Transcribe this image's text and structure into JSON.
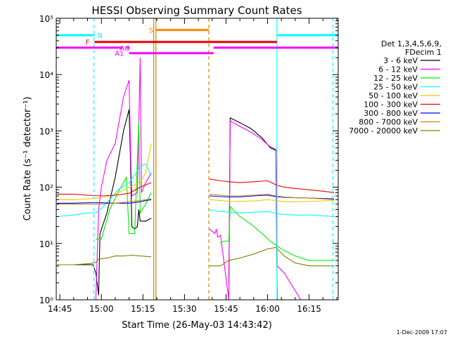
{
  "chart_data": {
    "type": "line",
    "title": "HESSI Observing Summary Count Rates",
    "xlabel": "Start Time (26-May-03 14:43:42)",
    "ylabel": "Count Rate (s⁻¹ detector⁻¹)",
    "footer": "1-Dec-2009 17:07",
    "x_unit": "minutes after 14:00 UT",
    "xlim": [
      43.7,
      145.5
    ],
    "ylim": [
      1,
      100000
    ],
    "yscale": "log",
    "x_ticks": [
      {
        "v": 45,
        "label": "14:45"
      },
      {
        "v": 60,
        "label": "15:00"
      },
      {
        "v": 75,
        "label": "15:15"
      },
      {
        "v": 90,
        "label": "15:30"
      },
      {
        "v": 105,
        "label": "15:45"
      },
      {
        "v": 120,
        "label": "16:00"
      },
      {
        "v": 135,
        "label": "16:15"
      }
    ],
    "y_ticks": [
      {
        "v": 1,
        "label": "10⁰"
      },
      {
        "v": 10,
        "label": "10¹"
      },
      {
        "v": 100,
        "label": "10²"
      },
      {
        "v": 1000,
        "label": "10³"
      },
      {
        "v": 10000,
        "label": "10⁴"
      },
      {
        "v": 100000,
        "label": "10⁵"
      }
    ],
    "legend": {
      "placement": "right",
      "header": [
        "Det 1,3,4,5,6,9,",
        "FDecim 1"
      ]
    },
    "series": [
      {
        "name": "3 - 6 keV",
        "color": "#000000",
        "segments": [
          [
            [
              44,
              4.2
            ],
            [
              57,
              4.2
            ],
            [
              58,
              3
            ],
            [
              59,
              1.2
            ],
            [
              59.5,
              15
            ],
            [
              62,
              35
            ],
            [
              65,
              150
            ],
            [
              68,
              1000
            ],
            [
              70,
              2400
            ],
            [
              70.5,
              300
            ],
            [
              71,
              20
            ],
            [
              72,
              18
            ],
            [
              73,
              20
            ],
            [
              73.5,
              40
            ],
            [
              74,
              25
            ],
            [
              76,
              25
            ],
            [
              78,
              28
            ]
          ],
          [
            [
              103,
              1
            ],
            [
              106,
              1
            ],
            [
              106.5,
              1700
            ],
            [
              110,
              1400
            ],
            [
              114,
              1100
            ],
            [
              118,
              750
            ],
            [
              121,
              500
            ],
            [
              123,
              450
            ],
            [
              123.5,
              1
            ]
          ]
        ]
      },
      {
        "name": "6 - 12 keV",
        "color": "#ff00ff",
        "segments": [
          [
            [
              44,
              1
            ],
            [
              55,
              1
            ],
            [
              55.5,
              1
            ],
            [
              57,
              1
            ],
            [
              58,
              1
            ],
            [
              59,
              40
            ],
            [
              60,
              100
            ],
            [
              62,
              300
            ],
            [
              65,
              600
            ],
            [
              68,
              4000
            ],
            [
              70,
              8000
            ],
            [
              70.5,
              500
            ],
            [
              71,
              70
            ],
            [
              73,
              80
            ],
            [
              74,
              20000
            ],
            [
              74.5,
              80
            ],
            [
              76,
              120
            ],
            [
              78,
              180
            ]
          ],
          [
            [
              99,
              18
            ],
            [
              101,
              15
            ],
            [
              101.5,
              18
            ],
            [
              102,
              13
            ],
            [
              103,
              14
            ],
            [
              106,
              1
            ],
            [
              106.5,
              1500
            ],
            [
              110,
              1200
            ],
            [
              114,
              950
            ],
            [
              118,
              700
            ],
            [
              121,
              520
            ],
            [
              123,
              470
            ],
            [
              123.5,
              4
            ],
            [
              126,
              3
            ],
            [
              132,
              1
            ]
          ]
        ]
      },
      {
        "name": "12 - 25 keV",
        "color": "#00ee00",
        "segments": [
          [
            [
              58,
              12
            ],
            [
              60,
              12
            ],
            [
              63,
              40
            ],
            [
              66,
              80
            ],
            [
              69,
              150
            ],
            [
              70,
              15
            ],
            [
              72,
              15
            ],
            [
              73.5,
              1500
            ],
            [
              74,
              35
            ],
            [
              76,
              50
            ],
            [
              78,
              80
            ]
          ],
          [
            [
              103,
              10
            ],
            [
              104,
              11
            ],
            [
              106,
              11
            ],
            [
              106.5,
              45
            ],
            [
              110,
              30
            ],
            [
              114,
              22
            ],
            [
              118,
              15
            ],
            [
              121,
              11
            ],
            [
              125,
              8
            ],
            [
              130,
              6
            ],
            [
              135,
              5
            ],
            [
              140,
              5
            ],
            [
              144,
              5
            ]
          ]
        ]
      },
      {
        "name": "25 - 50 keV",
        "color": "#00ffff",
        "segments": [
          [
            [
              44,
              30
            ],
            [
              50,
              32
            ],
            [
              55,
              35
            ],
            [
              58,
              35
            ],
            [
              60,
              42
            ],
            [
              63,
              60
            ],
            [
              66,
              90
            ],
            [
              70,
              120
            ],
            [
              74,
              230
            ],
            [
              76,
              260
            ],
            [
              78,
              160
            ]
          ],
          [
            [
              99,
              40
            ],
            [
              101,
              38
            ],
            [
              103,
              37
            ],
            [
              106,
              36
            ],
            [
              110,
              35
            ],
            [
              115,
              36
            ],
            [
              120,
              37
            ],
            [
              125,
              33
            ],
            [
              130,
              32
            ],
            [
              135,
              32
            ],
            [
              140,
              31
            ],
            [
              144,
              30
            ]
          ]
        ]
      },
      {
        "name": "50 - 100 keV",
        "color": "#eecc00",
        "segments": [
          [
            [
              44,
              60
            ],
            [
              50,
              60
            ],
            [
              55,
              62
            ],
            [
              60,
              65
            ],
            [
              65,
              75
            ],
            [
              70,
              100
            ],
            [
              74,
              120
            ],
            [
              76,
              180
            ],
            [
              78,
              600
            ]
          ],
          [
            [
              99,
              60
            ],
            [
              103,
              58
            ],
            [
              106,
              56
            ],
            [
              110,
              56
            ],
            [
              115,
              57
            ],
            [
              120,
              60
            ],
            [
              123,
              58
            ],
            [
              126,
              55
            ],
            [
              130,
              55
            ],
            [
              135,
              56
            ],
            [
              140,
              57
            ],
            [
              144,
              58
            ]
          ]
        ]
      },
      {
        "name": "100 - 300 keV",
        "color": "#ee0000",
        "segments": [
          [
            [
              44,
              75
            ],
            [
              50,
              75
            ],
            [
              55,
              72
            ],
            [
              60,
              70
            ],
            [
              65,
              72
            ],
            [
              70,
              78
            ],
            [
              74,
              100
            ],
            [
              76,
              110
            ],
            [
              78,
              120
            ]
          ],
          [
            [
              99,
              140
            ],
            [
              103,
              130
            ],
            [
              106,
              125
            ],
            [
              110,
              120
            ],
            [
              115,
              125
            ],
            [
              120,
              130
            ],
            [
              123,
              110
            ],
            [
              126,
              100
            ],
            [
              130,
              95
            ],
            [
              135,
              90
            ],
            [
              140,
              85
            ],
            [
              144,
              80
            ]
          ]
        ]
      },
      {
        "name": "300 - 800 keV",
        "color": "#0000ff",
        "segments": [
          [
            [
              44,
              52
            ],
            [
              50,
              52
            ],
            [
              55,
              53
            ],
            [
              60,
              53
            ],
            [
              65,
              52
            ],
            [
              70,
              52
            ],
            [
              74,
              55
            ],
            [
              76,
              58
            ],
            [
              78,
              60
            ]
          ],
          [
            [
              99,
              70
            ],
            [
              103,
              68
            ],
            [
              106,
              67
            ],
            [
              110,
              67
            ],
            [
              115,
              70
            ],
            [
              120,
              72
            ],
            [
              123,
              68
            ],
            [
              126,
              66
            ],
            [
              130,
              65
            ],
            [
              135,
              64
            ],
            [
              140,
              63
            ],
            [
              144,
              62
            ]
          ]
        ]
      },
      {
        "name": "800 - 7000 keV",
        "color": "#cc8800",
        "segments": [
          [
            [
              44,
              50
            ],
            [
              50,
              50
            ],
            [
              55,
              50
            ],
            [
              60,
              50
            ],
            [
              65,
              52
            ],
            [
              70,
              55
            ],
            [
              74,
              58
            ],
            [
              76,
              60
            ],
            [
              78,
              62
            ]
          ],
          [
            [
              99,
              75
            ],
            [
              103,
              72
            ],
            [
              106,
              70
            ],
            [
              110,
              70
            ],
            [
              115,
              72
            ],
            [
              120,
              75
            ],
            [
              123,
              70
            ],
            [
              126,
              67
            ],
            [
              130,
              65
            ],
            [
              135,
              64
            ],
            [
              140,
              62
            ],
            [
              144,
              60
            ]
          ]
        ]
      },
      {
        "name": "7000 - 20000 keV",
        "color": "#808000",
        "segments": [
          [
            [
              44,
              4.2
            ],
            [
              50,
              4.2
            ],
            [
              56,
              4.4
            ],
            [
              58,
              4.6
            ],
            [
              59,
              5.3
            ],
            [
              62,
              5.5
            ],
            [
              65,
              6
            ],
            [
              68,
              6
            ],
            [
              71,
              6.2
            ],
            [
              74,
              6
            ],
            [
              78,
              5.8
            ]
          ],
          [
            [
              99,
              4
            ],
            [
              103,
              4
            ],
            [
              106,
              5
            ],
            [
              110,
              5.5
            ],
            [
              115,
              6.5
            ],
            [
              120,
              8
            ],
            [
              123,
              8.5
            ],
            [
              126,
              6
            ],
            [
              130,
              4.5
            ],
            [
              135,
              4
            ],
            [
              140,
              4
            ],
            [
              144,
              4
            ]
          ]
        ]
      }
    ],
    "vertical_lines": [
      {
        "x": 57.3,
        "color": "#00ffff",
        "style": "dashed"
      },
      {
        "x": 79.7,
        "color": "#cc8800",
        "style": "solid"
      },
      {
        "x": 78.9,
        "color": "#cc8800",
        "style": "solid"
      },
      {
        "x": 98.8,
        "color": "#cc8800",
        "style": "dashed"
      },
      {
        "x": 123.4,
        "color": "#00ffff",
        "style": "solid"
      },
      {
        "x": 143.6,
        "color": "#00ffff",
        "style": "dashed"
      }
    ],
    "flag_bars": [
      {
        "label": "N",
        "color": "#00ffff",
        "y": 50000,
        "ranges": [
          [
            43.7,
            57.5
          ],
          [
            123.4,
            145.5
          ]
        ],
        "label_x": 59.5
      },
      {
        "label": "S",
        "color": "#ff8800",
        "y": 62000,
        "ranges": [
          [
            79.8,
            98.8
          ]
        ],
        "label_x": 78
      },
      {
        "label": "F",
        "color": "#ee0000",
        "y": 38000,
        "ranges": [
          [
            57.5,
            123.4
          ]
        ],
        "label_x": 55
      },
      {
        "label": "AO",
        "color": "#ff00ff",
        "y": 30000,
        "ranges": [
          [
            43.7,
            67.5
          ],
          [
            69,
            70
          ],
          [
            100.5,
            145.5
          ]
        ],
        "label_x": 68.5
      },
      {
        "label": "A1",
        "color": "#ff00ff",
        "y": 24000,
        "ranges": [
          [
            70,
            100.5
          ]
        ],
        "label_x": 66.5
      }
    ]
  }
}
